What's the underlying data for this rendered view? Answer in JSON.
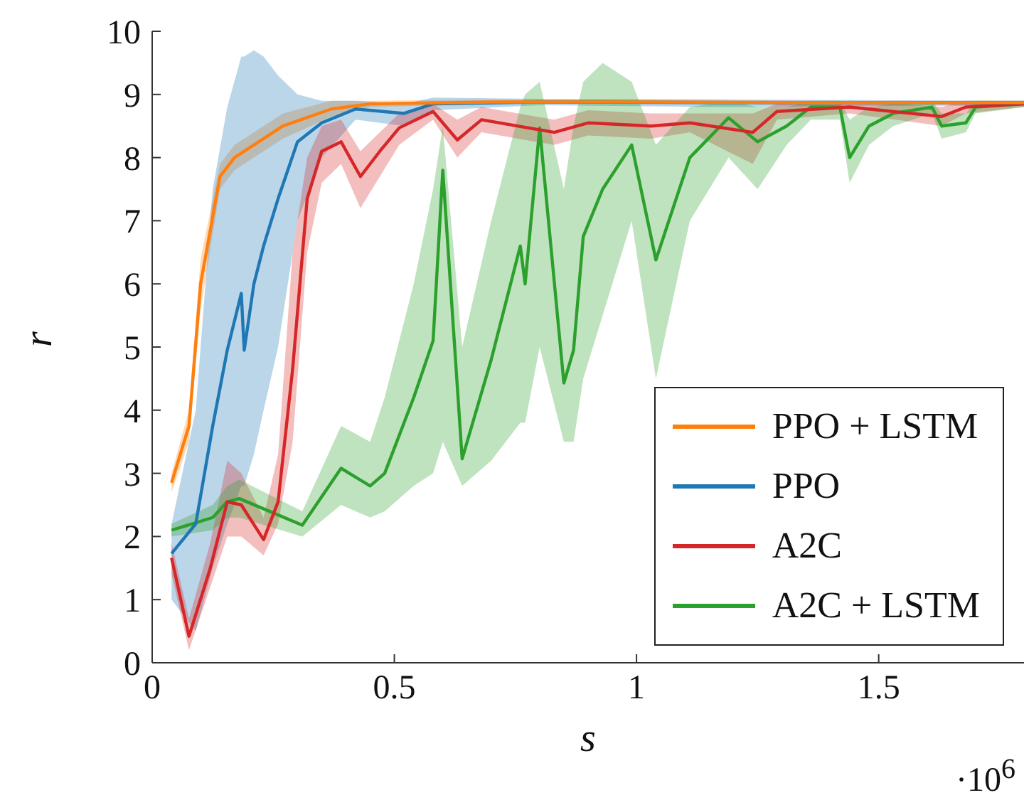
{
  "chart_data": {
    "type": "line",
    "xlabel": "s",
    "ylabel": "r",
    "annotations": [
      "·10$^{6}$"
    ],
    "xlim": [
      0,
      1.8
    ],
    "xticks": [
      0,
      0.5,
      1,
      1.5
    ],
    "ylim": [
      0,
      10
    ],
    "yticks": [
      0,
      1,
      2,
      3,
      4,
      5,
      6,
      7,
      8,
      9,
      10
    ],
    "legend": "bottom right",
    "marker": "none",
    "line_style": "solid",
    "series": [
      {
        "name": "PPO + LSTM",
        "color": "#ff7f0e",
        "x": [
          0.04,
          0.076,
          0.1,
          0.14,
          0.17,
          0.27,
          0.37,
          0.45,
          0.7,
          1.0,
          1.4,
          1.8
        ],
        "values": [
          2.85,
          3.75,
          6.0,
          7.7,
          8.0,
          8.5,
          8.77,
          8.85,
          8.88,
          8.88,
          8.87,
          8.87
        ],
        "lower": [
          2.7,
          3.5,
          5.6,
          7.5,
          7.8,
          8.3,
          8.65,
          8.8,
          8.85,
          8.85,
          8.84,
          8.84
        ],
        "upper": [
          3.0,
          4.0,
          6.4,
          7.9,
          8.2,
          8.7,
          8.9,
          8.9,
          8.92,
          8.92,
          8.9,
          8.9
        ]
      },
      {
        "name": "PPO",
        "color": "#1f77b4",
        "x": [
          0.04,
          0.09,
          0.125,
          0.155,
          0.184,
          0.19,
          0.21,
          0.23,
          0.26,
          0.3,
          0.35,
          0.42,
          0.52,
          0.58,
          0.8,
          1.2,
          1.8
        ],
        "values": [
          1.73,
          2.2,
          3.75,
          4.95,
          5.85,
          4.95,
          6.0,
          6.6,
          7.35,
          8.25,
          8.55,
          8.77,
          8.7,
          8.85,
          8.88,
          8.87,
          8.87
        ],
        "lower": [
          1.0,
          0.5,
          1.5,
          2.2,
          2.8,
          2.8,
          3.3,
          4.0,
          5.0,
          7.0,
          8.0,
          8.6,
          8.5,
          8.75,
          8.83,
          8.8,
          8.83
        ],
        "upper": [
          2.2,
          4.0,
          7.5,
          8.8,
          9.6,
          9.6,
          9.7,
          9.6,
          9.3,
          9.0,
          8.9,
          8.9,
          8.85,
          8.95,
          8.93,
          8.92,
          8.9
        ]
      },
      {
        "name": "A2C",
        "color": "#d62728",
        "x": [
          0.04,
          0.076,
          0.12,
          0.155,
          0.184,
          0.23,
          0.26,
          0.29,
          0.32,
          0.35,
          0.39,
          0.43,
          0.47,
          0.51,
          0.58,
          0.63,
          0.68,
          0.83,
          0.9,
          1.03,
          1.11,
          1.24,
          1.29,
          1.44,
          1.63,
          1.68,
          1.8
        ],
        "values": [
          1.66,
          0.42,
          1.5,
          2.55,
          2.5,
          1.95,
          2.55,
          4.65,
          7.35,
          8.1,
          8.25,
          7.7,
          8.1,
          8.47,
          8.73,
          8.28,
          8.6,
          8.4,
          8.55,
          8.5,
          8.55,
          8.4,
          8.73,
          8.8,
          8.65,
          8.8,
          8.85
        ],
        "lower": [
          1.4,
          0.2,
          1.2,
          2.0,
          2.0,
          1.7,
          2.2,
          3.5,
          6.5,
          7.6,
          7.9,
          7.2,
          7.7,
          8.2,
          8.6,
          8.0,
          8.4,
          8.2,
          8.35,
          8.3,
          8.4,
          7.9,
          8.6,
          8.7,
          8.5,
          8.7,
          8.8
        ],
        "upper": [
          1.9,
          0.7,
          1.9,
          3.2,
          3.0,
          2.3,
          3.3,
          6.5,
          8.0,
          8.5,
          8.6,
          8.1,
          8.4,
          8.7,
          8.85,
          8.6,
          8.8,
          8.6,
          8.75,
          8.7,
          8.7,
          8.7,
          8.85,
          8.9,
          8.8,
          8.9,
          8.9
        ]
      },
      {
        "name": "A2C + LSTM",
        "color": "#2ca02c",
        "x": [
          0.04,
          0.125,
          0.155,
          0.18,
          0.31,
          0.39,
          0.45,
          0.48,
          0.54,
          0.58,
          0.6,
          0.64,
          0.7,
          0.76,
          0.77,
          0.8,
          0.85,
          0.87,
          0.89,
          0.93,
          0.99,
          1.04,
          1.11,
          1.19,
          1.25,
          1.31,
          1.36,
          1.42,
          1.44,
          1.48,
          1.53,
          1.61,
          1.63,
          1.68,
          1.7,
          1.8
        ],
        "values": [
          2.1,
          2.3,
          2.55,
          2.6,
          2.18,
          3.08,
          2.8,
          3.0,
          4.2,
          5.1,
          7.8,
          3.23,
          4.8,
          6.6,
          6.0,
          8.47,
          4.43,
          4.95,
          6.75,
          7.5,
          8.2,
          6.38,
          8.0,
          8.63,
          8.25,
          8.5,
          8.8,
          8.8,
          8.0,
          8.5,
          8.7,
          8.8,
          8.5,
          8.55,
          8.8,
          8.85
        ],
        "lower": [
          2.0,
          2.1,
          2.3,
          2.3,
          2.0,
          2.5,
          2.3,
          2.4,
          2.8,
          3.0,
          3.5,
          2.8,
          3.2,
          3.8,
          3.8,
          5.0,
          3.5,
          3.5,
          4.5,
          5.5,
          7.0,
          4.5,
          7.0,
          8.0,
          7.5,
          8.2,
          8.6,
          8.6,
          7.6,
          8.2,
          8.5,
          8.7,
          8.3,
          8.4,
          8.7,
          8.8
        ],
        "upper": [
          2.2,
          2.5,
          2.8,
          2.9,
          2.4,
          3.75,
          3.5,
          4.2,
          6.0,
          7.5,
          8.5,
          5.0,
          7.0,
          8.8,
          9.0,
          9.2,
          7.5,
          8.5,
          9.2,
          9.5,
          9.2,
          8.2,
          8.8,
          8.9,
          8.8,
          8.8,
          8.9,
          8.9,
          8.6,
          8.8,
          8.85,
          8.9,
          8.7,
          8.7,
          8.9,
          8.9
        ]
      }
    ]
  }
}
